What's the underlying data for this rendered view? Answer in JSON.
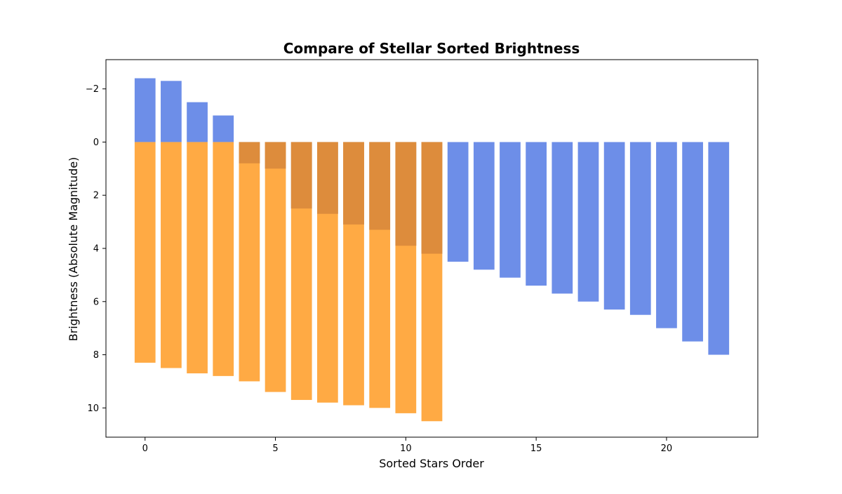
{
  "chart_data": {
    "type": "bar",
    "title": "Compare of Stellar Sorted Brightness",
    "xlabel": "Sorted Stars Order",
    "ylabel": "Brightness (Absolute Magnitude)",
    "xlim": [
      -1.5,
      23.5
    ],
    "ylim": [
      -3.1,
      11.1
    ],
    "y_inverted": true,
    "x_ticks": [
      0,
      5,
      10,
      15,
      20
    ],
    "y_ticks": [
      -2,
      0,
      2,
      4,
      6,
      8,
      10
    ],
    "grid": false,
    "bar_width": 0.8,
    "series": [
      {
        "color": "#6d8ee8",
        "x": [
          0,
          1,
          2,
          3,
          4,
          5,
          6,
          7,
          8,
          9,
          10,
          11,
          12,
          13,
          14,
          15,
          16,
          17,
          18,
          19,
          20,
          21,
          22
        ],
        "values": [
          -2.4,
          -2.3,
          -1.5,
          -1.0,
          0.8,
          1.0,
          2.5,
          2.7,
          3.1,
          3.3,
          3.9,
          4.2,
          4.5,
          4.8,
          5.1,
          5.4,
          5.7,
          6.0,
          6.3,
          6.5,
          7.0,
          7.5,
          8.0
        ]
      },
      {
        "color": "#ffaa44",
        "x": [
          0,
          1,
          2,
          3,
          4,
          5,
          6,
          7,
          8,
          9,
          10,
          11
        ],
        "values": [
          8.3,
          8.5,
          8.7,
          8.8,
          9.0,
          9.4,
          9.7,
          9.8,
          9.9,
          10.0,
          10.2,
          10.5
        ]
      }
    ],
    "overlap_color": "#dd8c3c"
  }
}
